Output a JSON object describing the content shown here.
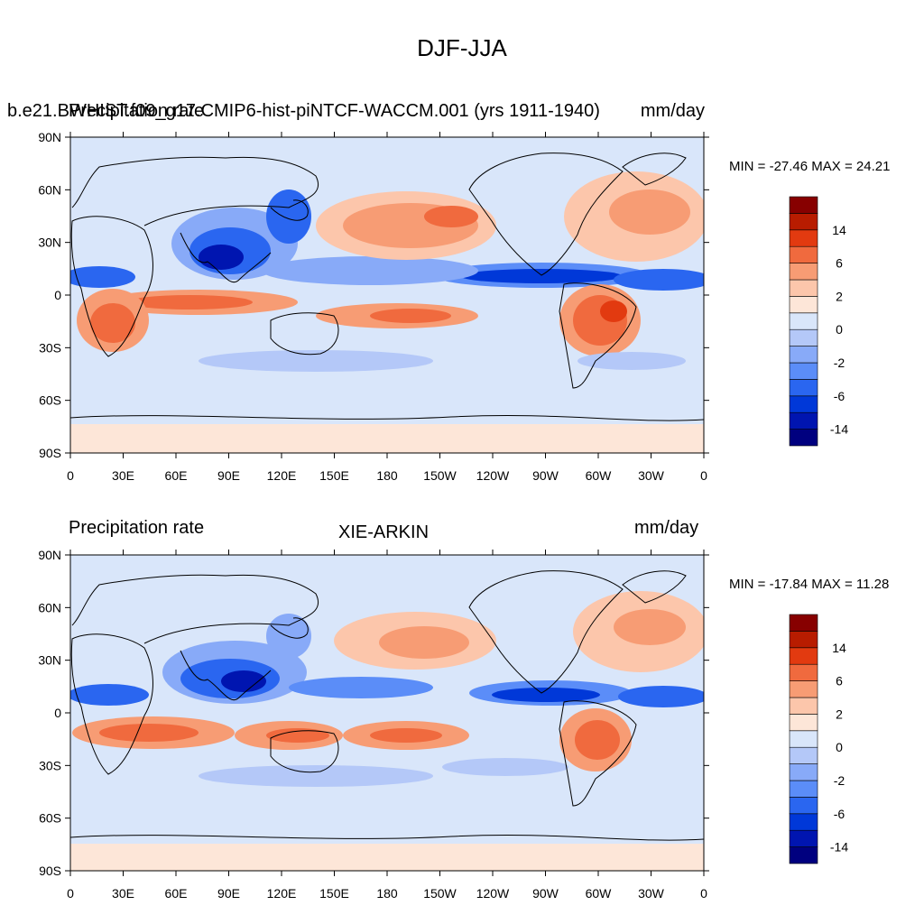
{
  "figure": {
    "title": "DJF-JJA"
  },
  "panels": [
    {
      "left_label_1": "b.e21.BWHIST.f09_g17.CMIP6-hist-piNTCF-WACCM.001 (yrs 1911-1940)",
      "left_label_2": "Precipitation rate",
      "right_label": "mm/day",
      "center_label": "",
      "stats": "MIN = -27.46 MAX =  24.21"
    },
    {
      "left_label_1": "Precipitation rate",
      "left_label_2": "",
      "right_label": "mm/day",
      "center_label": "XIE-ARKIN",
      "stats": "MIN = -17.84 MAX =  11.28"
    }
  ],
  "axes": {
    "lat_labels": [
      "90N",
      "60N",
      "30N",
      "0",
      "30S",
      "60S",
      "90S"
    ],
    "lon_labels": [
      "0",
      "30E",
      "60E",
      "90E",
      "120E",
      "150E",
      "180",
      "150W",
      "120W",
      "90W",
      "60W",
      "30W",
      "0"
    ]
  },
  "colorbar": {
    "colors": [
      "#00007f",
      "#0015b0",
      "#0038d8",
      "#2a66f0",
      "#5b8df8",
      "#88aaf8",
      "#b4c8f8",
      "#d9e6fa",
      "#fde6d8",
      "#fcc6ab",
      "#f79c74",
      "#f06a3e",
      "#e23a10",
      "#b81c00",
      "#870000"
    ],
    "labels": [
      "-14",
      "-6",
      "-2",
      "0",
      "2",
      "6",
      "14"
    ]
  }
}
